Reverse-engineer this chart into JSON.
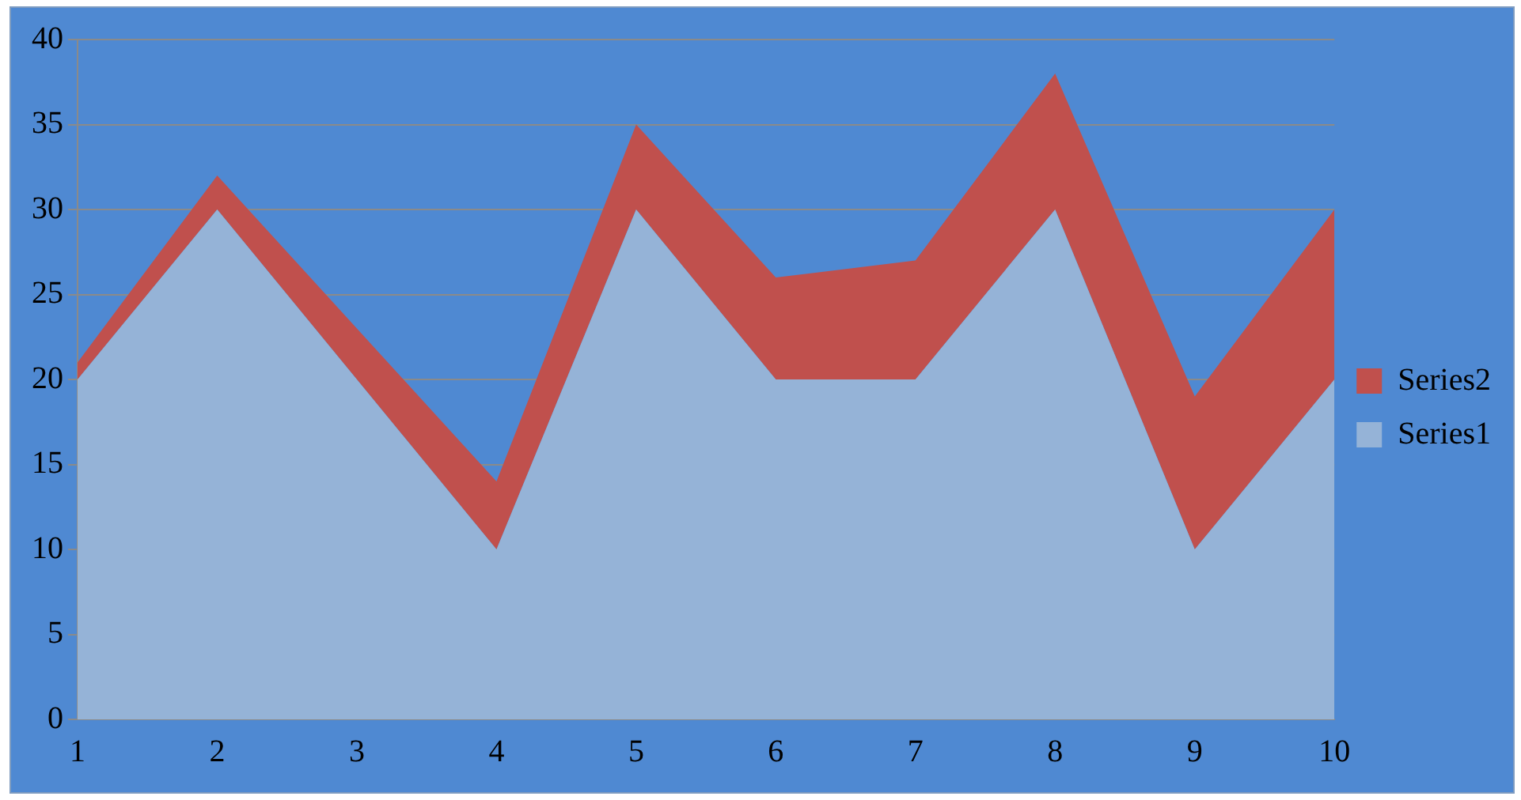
{
  "chart_data": {
    "type": "area",
    "stacked": true,
    "categories": [
      "1",
      "2",
      "3",
      "4",
      "5",
      "6",
      "7",
      "8",
      "9",
      "10"
    ],
    "series": [
      {
        "name": "Series1",
        "color": "#95b3d7",
        "values": [
          20,
          30,
          20,
          10,
          30,
          20,
          20,
          30,
          10,
          20
        ]
      },
      {
        "name": "Series2",
        "color": "#c0504d",
        "values": [
          1,
          2,
          3,
          4,
          5,
          6,
          7,
          8,
          9,
          10
        ]
      }
    ],
    "ylim": [
      0,
      40
    ],
    "yticks": [
      0,
      5,
      10,
      15,
      20,
      25,
      30,
      35,
      40
    ],
    "grid": "y",
    "legend": "right"
  }
}
